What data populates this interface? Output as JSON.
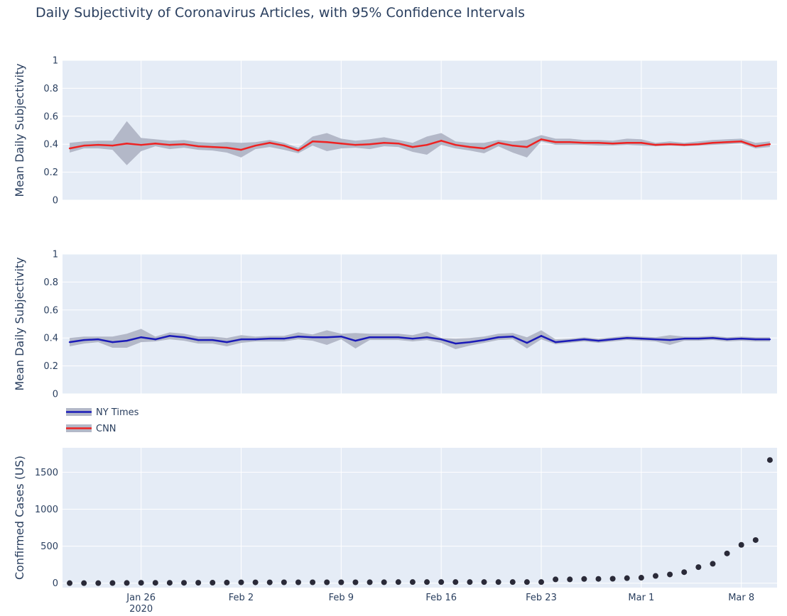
{
  "chart_title": "Daily Subjectivity of Coronavirus Articles, with 95% Confidence Intervals",
  "chart_data": [
    {
      "type": "line",
      "panel": "cnn",
      "ylabel": "Mean Daily Subjectivity",
      "ylim": [
        0,
        1
      ],
      "yticks": [
        0,
        0.2,
        0.4,
        0.6,
        0.8,
        1
      ],
      "ytick_labels": [
        "0",
        "0.2",
        "0.4",
        "0.6",
        "0.8",
        "1"
      ],
      "x": [
        "2020-01-21",
        "2020-01-22",
        "2020-01-23",
        "2020-01-24",
        "2020-01-25",
        "2020-01-26",
        "2020-01-27",
        "2020-01-28",
        "2020-01-29",
        "2020-01-30",
        "2020-01-31",
        "2020-02-01",
        "2020-02-02",
        "2020-02-03",
        "2020-02-04",
        "2020-02-05",
        "2020-02-06",
        "2020-02-07",
        "2020-02-08",
        "2020-02-09",
        "2020-02-10",
        "2020-02-11",
        "2020-02-12",
        "2020-02-13",
        "2020-02-14",
        "2020-02-15",
        "2020-02-16",
        "2020-02-17",
        "2020-02-18",
        "2020-02-19",
        "2020-02-20",
        "2020-02-21",
        "2020-02-22",
        "2020-02-23",
        "2020-02-24",
        "2020-02-25",
        "2020-02-26",
        "2020-02-27",
        "2020-02-28",
        "2020-02-29",
        "2020-03-01",
        "2020-03-02",
        "2020-03-03",
        "2020-03-04",
        "2020-03-05",
        "2020-03-06",
        "2020-03-07",
        "2020-03-08",
        "2020-03-09",
        "2020-03-10"
      ],
      "series": [
        {
          "name": "CNN",
          "color": "#ee2222",
          "band_color": "#b3b8c8",
          "values": [
            0.37,
            0.39,
            0.395,
            0.39,
            0.405,
            0.395,
            0.405,
            0.395,
            0.4,
            0.385,
            0.38,
            0.375,
            0.36,
            0.39,
            0.41,
            0.39,
            0.355,
            0.42,
            0.415,
            0.405,
            0.395,
            0.4,
            0.41,
            0.405,
            0.38,
            0.395,
            0.425,
            0.395,
            0.38,
            0.37,
            0.41,
            0.39,
            0.38,
            0.435,
            0.415,
            0.415,
            0.41,
            0.41,
            0.405,
            0.41,
            0.41,
            0.395,
            0.4,
            0.395,
            0.4,
            0.41,
            0.415,
            0.42,
            0.385,
            0.4
          ],
          "lower": [
            0.34,
            0.37,
            0.37,
            0.36,
            0.25,
            0.35,
            0.385,
            0.365,
            0.375,
            0.36,
            0.355,
            0.34,
            0.305,
            0.365,
            0.38,
            0.36,
            0.335,
            0.39,
            0.35,
            0.37,
            0.375,
            0.365,
            0.385,
            0.38,
            0.345,
            0.325,
            0.395,
            0.37,
            0.355,
            0.335,
            0.385,
            0.34,
            0.305,
            0.42,
            0.395,
            0.395,
            0.395,
            0.39,
            0.39,
            0.395,
            0.39,
            0.385,
            0.39,
            0.385,
            0.39,
            0.395,
            0.4,
            0.405,
            0.37,
            0.38
          ],
          "upper": [
            0.41,
            0.42,
            0.425,
            0.425,
            0.565,
            0.445,
            0.435,
            0.425,
            0.43,
            0.415,
            0.41,
            0.415,
            0.41,
            0.415,
            0.43,
            0.41,
            0.375,
            0.455,
            0.48,
            0.44,
            0.425,
            0.435,
            0.45,
            0.43,
            0.41,
            0.455,
            0.48,
            0.42,
            0.41,
            0.41,
            0.43,
            0.42,
            0.43,
            0.465,
            0.44,
            0.44,
            0.43,
            0.43,
            0.425,
            0.44,
            0.435,
            0.41,
            0.42,
            0.41,
            0.42,
            0.43,
            0.435,
            0.44,
            0.41,
            0.42
          ]
        }
      ]
    },
    {
      "type": "line",
      "panel": "nyt",
      "ylabel": "Mean Daily Subjectivity",
      "ylim": [
        0,
        1
      ],
      "yticks": [
        0,
        0.2,
        0.4,
        0.6,
        0.8,
        1
      ],
      "ytick_labels": [
        "0",
        "0.2",
        "0.4",
        "0.6",
        "0.8",
        "1"
      ],
      "x": [
        "2020-01-21",
        "2020-01-22",
        "2020-01-23",
        "2020-01-24",
        "2020-01-25",
        "2020-01-26",
        "2020-01-27",
        "2020-01-28",
        "2020-01-29",
        "2020-01-30",
        "2020-01-31",
        "2020-02-01",
        "2020-02-02",
        "2020-02-03",
        "2020-02-04",
        "2020-02-05",
        "2020-02-06",
        "2020-02-07",
        "2020-02-08",
        "2020-02-09",
        "2020-02-10",
        "2020-02-11",
        "2020-02-12",
        "2020-02-13",
        "2020-02-14",
        "2020-02-15",
        "2020-02-16",
        "2020-02-17",
        "2020-02-18",
        "2020-02-19",
        "2020-02-20",
        "2020-02-21",
        "2020-02-22",
        "2020-02-23",
        "2020-02-24",
        "2020-02-25",
        "2020-02-26",
        "2020-02-27",
        "2020-02-28",
        "2020-02-29",
        "2020-03-01",
        "2020-03-02",
        "2020-03-03",
        "2020-03-04",
        "2020-03-05",
        "2020-03-06",
        "2020-03-07",
        "2020-03-08",
        "2020-03-09",
        "2020-03-10"
      ],
      "series": [
        {
          "name": "NY Times",
          "color": "#1a1ab8",
          "band_color": "#b3b8c8",
          "values": [
            0.37,
            0.385,
            0.39,
            0.37,
            0.38,
            0.405,
            0.39,
            0.415,
            0.405,
            0.385,
            0.385,
            0.37,
            0.39,
            0.39,
            0.395,
            0.395,
            0.41,
            0.405,
            0.405,
            0.41,
            0.38,
            0.405,
            0.405,
            0.405,
            0.395,
            0.405,
            0.39,
            0.36,
            0.37,
            0.385,
            0.405,
            0.41,
            0.365,
            0.415,
            0.37,
            0.38,
            0.39,
            0.38,
            0.39,
            0.4,
            0.395,
            0.39,
            0.385,
            0.395,
            0.395,
            0.4,
            0.39,
            0.395,
            0.39,
            0.39
          ],
          "lower": [
            0.34,
            0.36,
            0.37,
            0.33,
            0.33,
            0.37,
            0.375,
            0.39,
            0.38,
            0.36,
            0.36,
            0.34,
            0.365,
            0.375,
            0.375,
            0.375,
            0.39,
            0.38,
            0.35,
            0.39,
            0.325,
            0.385,
            0.385,
            0.385,
            0.375,
            0.385,
            0.365,
            0.32,
            0.345,
            0.365,
            0.385,
            0.39,
            0.325,
            0.39,
            0.355,
            0.365,
            0.375,
            0.365,
            0.375,
            0.385,
            0.38,
            0.375,
            0.35,
            0.38,
            0.38,
            0.385,
            0.375,
            0.38,
            0.375,
            0.375
          ],
          "upper": [
            0.4,
            0.41,
            0.41,
            0.41,
            0.43,
            0.465,
            0.41,
            0.44,
            0.43,
            0.41,
            0.41,
            0.4,
            0.42,
            0.41,
            0.415,
            0.415,
            0.44,
            0.425,
            0.455,
            0.43,
            0.435,
            0.43,
            0.43,
            0.43,
            0.42,
            0.445,
            0.4,
            0.395,
            0.4,
            0.41,
            0.43,
            0.435,
            0.405,
            0.455,
            0.39,
            0.395,
            0.405,
            0.395,
            0.405,
            0.415,
            0.41,
            0.405,
            0.42,
            0.41,
            0.41,
            0.415,
            0.405,
            0.41,
            0.405,
            0.405
          ]
        }
      ]
    },
    {
      "type": "scatter",
      "panel": "cases",
      "ylabel": "Confirmed Cases (US)",
      "ylim": [
        -60,
        1830
      ],
      "yticks": [
        0,
        500,
        1000,
        1500
      ],
      "ytick_labels": [
        "0",
        "500",
        "1000",
        "1500"
      ],
      "xticks": [
        "2020-01-26",
        "2020-02-02",
        "2020-02-09",
        "2020-02-16",
        "2020-02-23",
        "2020-03-01",
        "2020-03-08"
      ],
      "xtick_labels": [
        "Jan 26",
        "Feb 2",
        "Feb 9",
        "Feb 16",
        "Feb 23",
        "Mar 1",
        "Mar 8"
      ],
      "xtick_sublabel": "2020",
      "x": [
        "2020-01-21",
        "2020-01-22",
        "2020-01-23",
        "2020-01-24",
        "2020-01-25",
        "2020-01-26",
        "2020-01-27",
        "2020-01-28",
        "2020-01-29",
        "2020-01-30",
        "2020-01-31",
        "2020-02-01",
        "2020-02-02",
        "2020-02-03",
        "2020-02-04",
        "2020-02-05",
        "2020-02-06",
        "2020-02-07",
        "2020-02-08",
        "2020-02-09",
        "2020-02-10",
        "2020-02-11",
        "2020-02-12",
        "2020-02-13",
        "2020-02-14",
        "2020-02-15",
        "2020-02-16",
        "2020-02-17",
        "2020-02-18",
        "2020-02-19",
        "2020-02-20",
        "2020-02-21",
        "2020-02-22",
        "2020-02-23",
        "2020-02-24",
        "2020-02-25",
        "2020-02-26",
        "2020-02-27",
        "2020-02-28",
        "2020-02-29",
        "2020-03-01",
        "2020-03-02",
        "2020-03-03",
        "2020-03-04",
        "2020-03-05",
        "2020-03-06",
        "2020-03-07",
        "2020-03-08",
        "2020-03-09",
        "2020-03-10"
      ],
      "series": [
        {
          "color": "#2a2a38",
          "values": [
            1,
            1,
            1,
            2,
            3,
            5,
            5,
            5,
            5,
            6,
            7,
            8,
            11,
            11,
            11,
            12,
            12,
            12,
            12,
            12,
            12,
            13,
            13,
            15,
            15,
            15,
            15,
            15,
            15,
            15,
            15,
            15,
            15,
            15,
            51,
            51,
            57,
            58,
            60,
            68,
            74,
            98,
            118,
            149,
            217,
            262,
            402,
            518,
            583,
            1665
          ]
        }
      ]
    }
  ],
  "legend": [
    {
      "name": "NY Times",
      "color": "#1a1ab8"
    },
    {
      "name": "CNN",
      "color": "#ee2222"
    }
  ],
  "colors": {
    "plot_bg": "#e5ecf6",
    "grid": "#ffffff",
    "text": "#2a3f5f"
  }
}
